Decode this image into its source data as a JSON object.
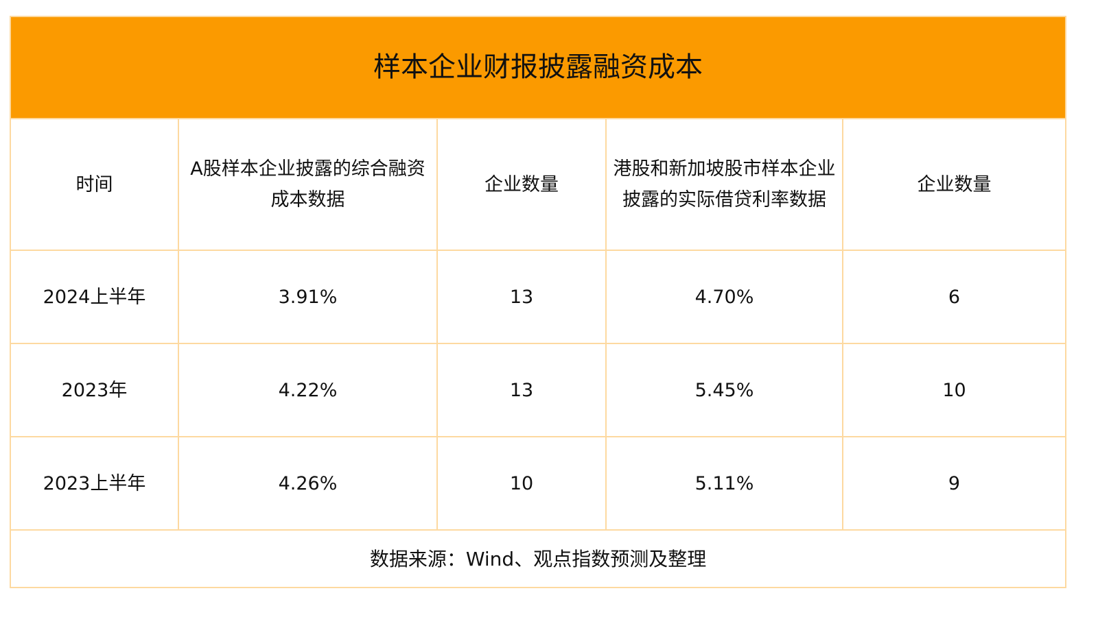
{
  "title": "样本企业财报披露融资成本",
  "accent_color": "#fb9a00",
  "border_color": "#fdd9a0",
  "source": "数据来源：Wind、观点指数预测及整理",
  "chart_data": {
    "type": "table",
    "title": "样本企业财报披露融资成本",
    "columns": [
      "时间",
      "A股样本企业披露的综合融资成本数据",
      "企业数量",
      "港股和新加坡股市样本企业披露的实际借贷利率数据",
      "企业数量"
    ],
    "rows": [
      [
        "2024上半年",
        "3.91%",
        "13",
        "4.70%",
        "6"
      ],
      [
        "2023年",
        "4.22%",
        "13",
        "5.45%",
        "10"
      ],
      [
        "2023上半年",
        "4.26%",
        "10",
        "5.11%",
        "9"
      ]
    ]
  }
}
